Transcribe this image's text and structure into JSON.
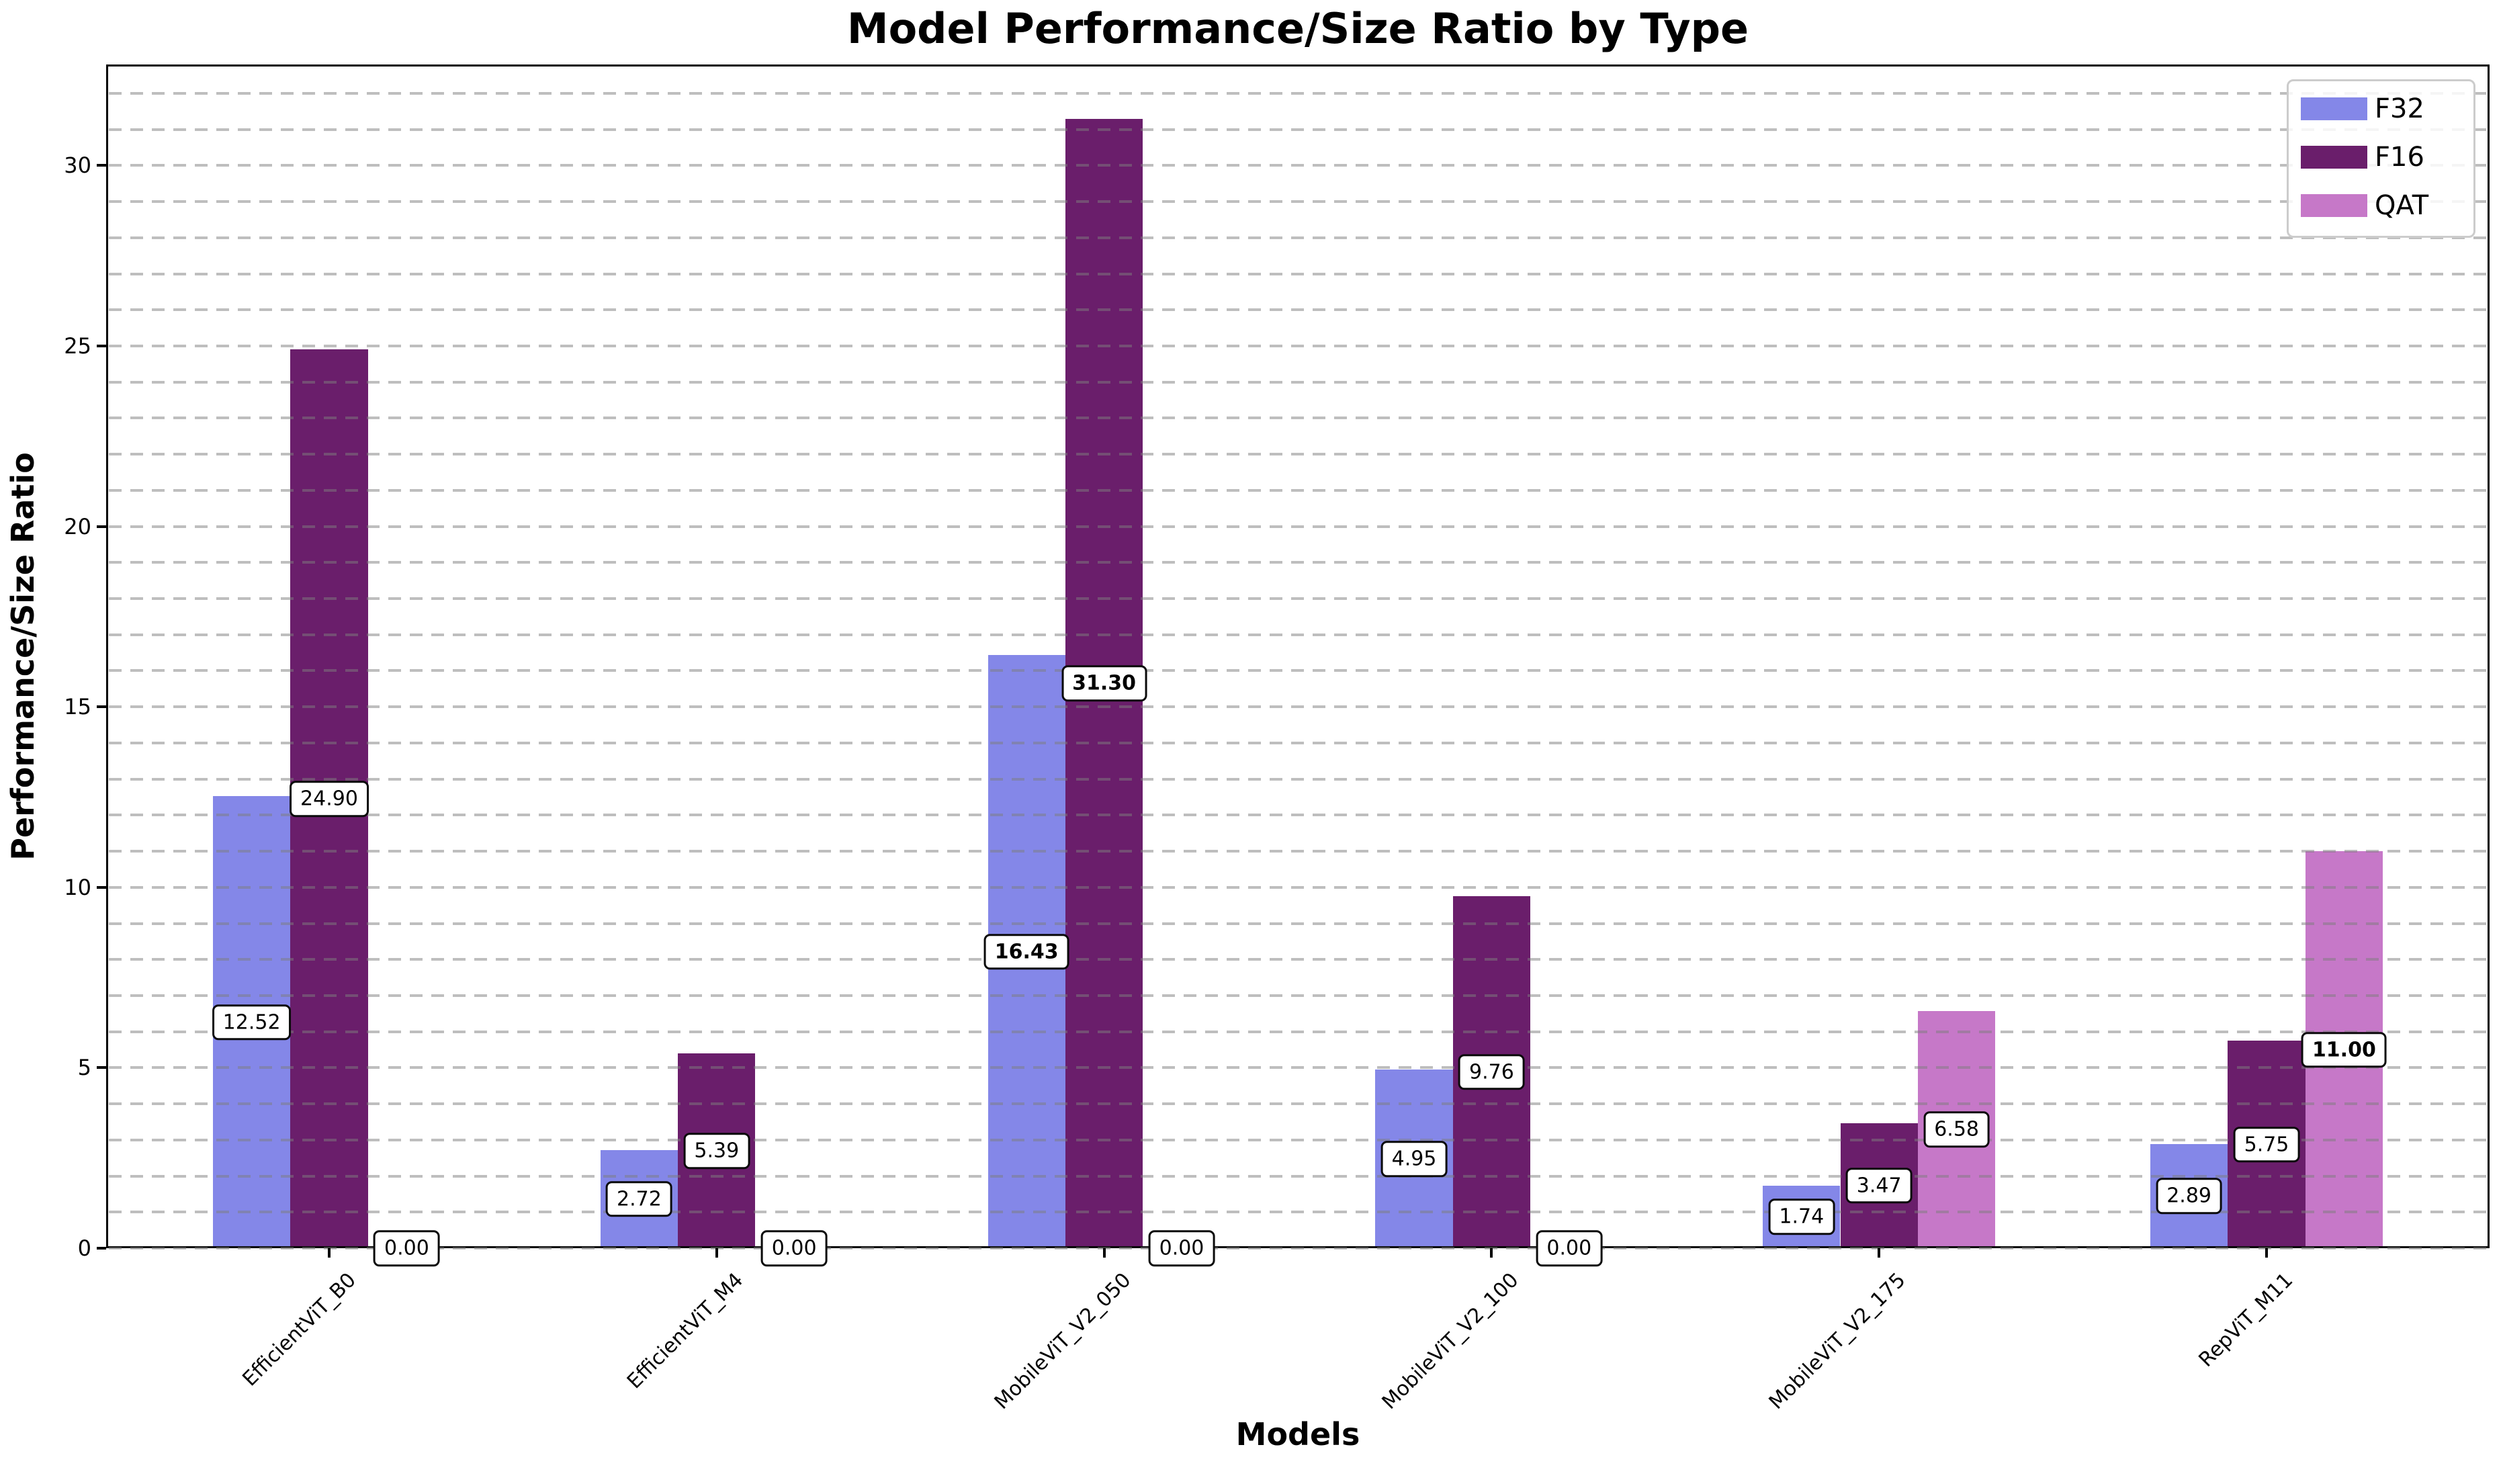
{
  "title": "Model Performance/Size Ratio by Type",
  "axes": {
    "xlabel": "Models",
    "ylabel": "Performance/Size Ratio",
    "yticks": [
      0,
      5,
      10,
      15,
      20,
      25,
      30
    ]
  },
  "legend": {
    "position": "upper right",
    "entries": [
      {
        "label": "F32",
        "color": "#8487E8"
      },
      {
        "label": "F16",
        "color": "#6A1E6B"
      },
      {
        "label": "QAT",
        "color": "#C678C8"
      }
    ]
  },
  "chart_data": {
    "type": "bar",
    "title": "Model Performance/Size Ratio by Type",
    "xlabel": "Models",
    "ylabel": "Performance/Size Ratio",
    "categories": [
      "EfficientViT_B0",
      "EfficientViT_M4",
      "MobileViT_V2_050",
      "MobileViT_V2_100",
      "MobileViT_V2_175",
      "RepViT_M11"
    ],
    "series": [
      {
        "name": "F32",
        "color": "#8487E8",
        "values": [
          12.52,
          2.72,
          16.43,
          4.95,
          1.74,
          2.89
        ],
        "bold_value_index": 2
      },
      {
        "name": "F16",
        "color": "#6A1E6B",
        "values": [
          24.9,
          5.39,
          31.3,
          9.76,
          3.47,
          5.75
        ],
        "bold_value_index": 2
      },
      {
        "name": "QAT",
        "color": "#C678C8",
        "values": [
          0.0,
          0.0,
          0.0,
          0.0,
          6.58,
          11.0
        ],
        "bold_value_index": 5
      }
    ],
    "ylim": [
      0,
      32.8
    ],
    "yticks": [
      0,
      5,
      10,
      15,
      20,
      25,
      30
    ],
    "grid": {
      "axis": "y",
      "step": 1,
      "style": "dashed",
      "drawn_over_bars": true
    },
    "value_label_format": "2dp",
    "value_label_position": "boxed at half bar height, 0.00 boxes sit on baseline",
    "legend_entries": [
      "F32",
      "F16",
      "QAT"
    ]
  }
}
